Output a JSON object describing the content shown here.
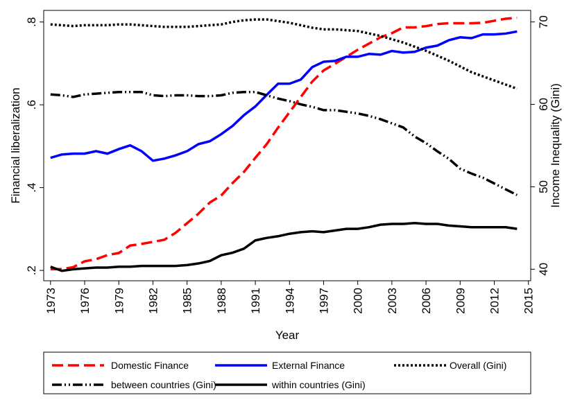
{
  "chart_data": {
    "type": "line",
    "y_label": "Financial liberalization",
    "y2_label": "Income Inequality (Gini)",
    "x_label": "Year",
    "xlim": [
      1972.4,
      2015.2
    ],
    "xticks": [
      1973,
      1976,
      1979,
      1982,
      1985,
      1988,
      1991,
      1994,
      1997,
      2000,
      2003,
      2006,
      2009,
      2012,
      2015
    ],
    "ylim": [
      0.175,
      0.828
    ],
    "yticks": [
      {
        "value": 0.2,
        "label": ".2"
      },
      {
        "value": 0.4,
        "label": ".4"
      },
      {
        "value": 0.6,
        "label": ".6"
      },
      {
        "value": 0.8,
        "label": ".8"
      }
    ],
    "y2lim": [
      38.6,
      71.4
    ],
    "y2ticks": [
      40,
      50,
      60,
      70
    ],
    "grid": false,
    "legend": "bottom",
    "x": [
      1973,
      1974,
      1975,
      1976,
      1977,
      1978,
      1979,
      1980,
      1981,
      1982,
      1983,
      1984,
      1985,
      1986,
      1987,
      1988,
      1989,
      1990,
      1991,
      1992,
      1993,
      1994,
      1995,
      1996,
      1997,
      1998,
      1999,
      2000,
      2001,
      2002,
      2003,
      2004,
      2005,
      2006,
      2007,
      2008,
      2009,
      2010,
      2011,
      2012,
      2013,
      2014
    ],
    "series": [
      {
        "name": "Domestic Finance",
        "color": "#ff0000",
        "dash": "dashed",
        "axis": "y",
        "values": [
          0.203,
          0.203,
          0.208,
          0.222,
          0.227,
          0.237,
          0.242,
          0.26,
          0.264,
          0.269,
          0.274,
          0.291,
          0.314,
          0.337,
          0.364,
          0.381,
          0.411,
          0.438,
          0.472,
          0.505,
          0.545,
          0.582,
          0.619,
          0.656,
          0.683,
          0.699,
          0.716,
          0.733,
          0.748,
          0.763,
          0.773,
          0.787,
          0.787,
          0.79,
          0.795,
          0.797,
          0.797,
          0.797,
          0.798,
          0.803,
          0.808,
          0.81
        ]
      },
      {
        "name": "External Finance",
        "color": "#0000ff",
        "dash": "solid",
        "axis": "y",
        "values": [
          0.472,
          0.48,
          0.482,
          0.482,
          0.488,
          0.482,
          0.493,
          0.502,
          0.488,
          0.465,
          0.47,
          0.478,
          0.488,
          0.505,
          0.512,
          0.529,
          0.549,
          0.575,
          0.596,
          0.624,
          0.651,
          0.651,
          0.661,
          0.691,
          0.704,
          0.706,
          0.716,
          0.716,
          0.723,
          0.721,
          0.73,
          0.726,
          0.728,
          0.738,
          0.743,
          0.756,
          0.763,
          0.761,
          0.77,
          0.77,
          0.772,
          0.777
        ]
      },
      {
        "name": "Overall (Gini)",
        "color": "#000000",
        "dash": "dotted",
        "axis": "y2",
        "values": [
          69.7,
          69.6,
          69.5,
          69.6,
          69.6,
          69.6,
          69.7,
          69.7,
          69.6,
          69.5,
          69.4,
          69.4,
          69.4,
          69.5,
          69.6,
          69.7,
          70.0,
          70.2,
          70.3,
          70.3,
          70.1,
          69.9,
          69.6,
          69.3,
          69.1,
          69.1,
          69.0,
          68.9,
          68.6,
          68.3,
          67.9,
          67.5,
          67.0,
          66.5,
          65.9,
          65.3,
          64.6,
          63.9,
          63.4,
          62.9,
          62.4,
          61.9
        ]
      },
      {
        "name": "between countries (Gini)",
        "color": "#000000",
        "dash": "dashdotdot",
        "axis": "y2",
        "values": [
          61.2,
          61.1,
          60.9,
          61.2,
          61.3,
          61.4,
          61.5,
          61.5,
          61.5,
          61.1,
          61.0,
          61.1,
          61.1,
          61.0,
          61.0,
          61.1,
          61.4,
          61.5,
          61.5,
          61.1,
          60.7,
          60.4,
          60.0,
          59.7,
          59.3,
          59.3,
          59.1,
          58.9,
          58.6,
          58.2,
          57.7,
          57.2,
          56.1,
          55.3,
          54.3,
          53.4,
          52.2,
          51.6,
          51.1,
          50.4,
          49.7,
          49.0
        ]
      },
      {
        "name": "within countries  (Gini)",
        "color": "#000000",
        "dash": "solid",
        "axis": "y2",
        "values": [
          40.3,
          39.8,
          40.0,
          40.1,
          40.2,
          40.2,
          40.3,
          40.3,
          40.4,
          40.4,
          40.4,
          40.4,
          40.5,
          40.7,
          41.0,
          41.7,
          42.0,
          42.5,
          43.5,
          43.8,
          44.0,
          44.3,
          44.5,
          44.6,
          44.5,
          44.7,
          44.9,
          44.9,
          45.1,
          45.4,
          45.5,
          45.5,
          45.6,
          45.5,
          45.5,
          45.3,
          45.2,
          45.1,
          45.1,
          45.1,
          45.1,
          44.9
        ]
      }
    ]
  }
}
